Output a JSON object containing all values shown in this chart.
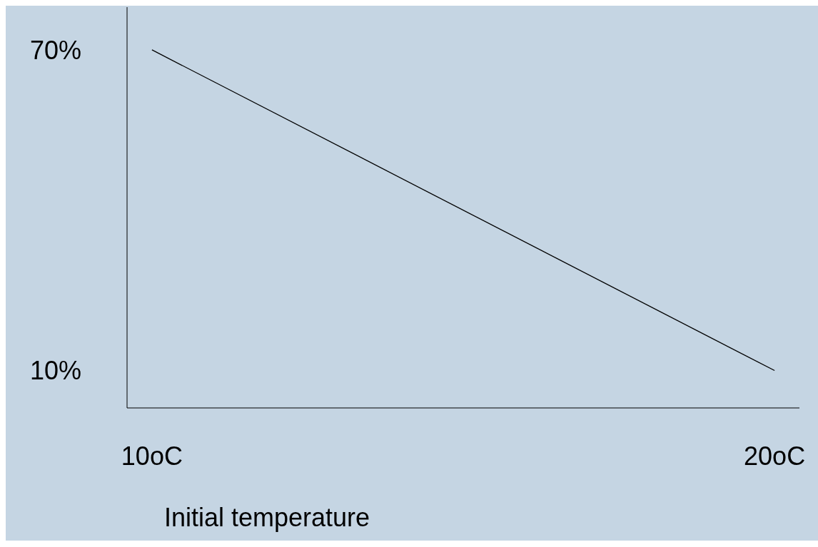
{
  "chart_data": {
    "type": "line",
    "xlabel": "Initial temperature",
    "x": [
      10,
      20
    ],
    "series": [
      {
        "color": "#000000",
        "values": [
          70,
          10
        ]
      }
    ],
    "xlim": [
      9.6,
      20.4
    ],
    "ylim": [
      3,
      78
    ],
    "xticks": [
      {
        "value": 10,
        "label": "10oC"
      },
      {
        "value": 20,
        "label": "20oC"
      }
    ],
    "yticks": [
      {
        "value": 10,
        "label": "10%"
      },
      {
        "value": 70,
        "label": "70%"
      }
    ],
    "grid": false,
    "marker": "none",
    "line_style": "solid"
  }
}
